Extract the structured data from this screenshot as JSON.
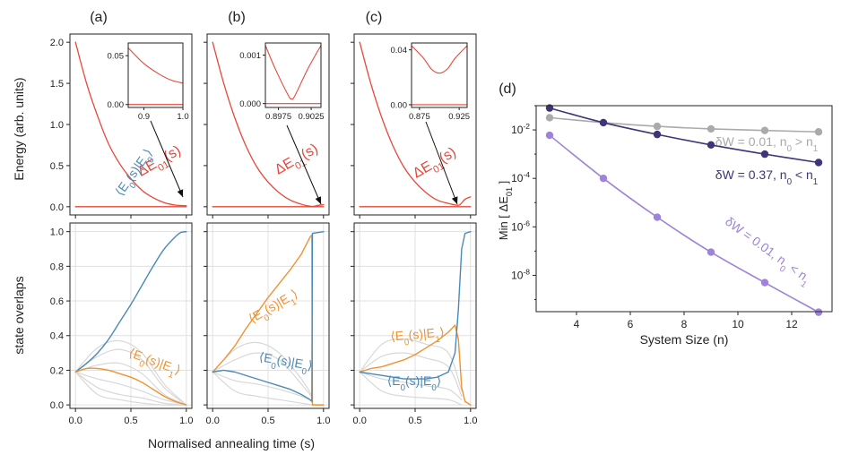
{
  "figure": {
    "panel_labels": [
      "(a)",
      "(b)",
      "(c)",
      "(d)"
    ],
    "shared_xlabel": "Normalised annealing time (s)",
    "top_ylabel": "Energy (arb. units)",
    "bottom_ylabel": "state overlaps"
  },
  "chart_data": [
    {
      "id": "a-energy",
      "type": "line",
      "xlabel": "",
      "ylabel": "Energy (arb. units)",
      "xlim": [
        0,
        1
      ],
      "ylim": [
        0,
        2.0
      ],
      "yticks": [
        "0.0",
        "0.5",
        "1.0",
        "1.5",
        "2.0"
      ],
      "series": [
        {
          "name": "ΔE01(s)",
          "x": [
            0,
            0.1,
            0.2,
            0.3,
            0.4,
            0.5,
            0.6,
            0.7,
            0.8,
            0.9,
            1.0
          ],
          "y": [
            2.0,
            1.5,
            1.1,
            0.76,
            0.52,
            0.34,
            0.2,
            0.11,
            0.05,
            0.02,
            0.012
          ]
        },
        {
          "name": "",
          "x": [
            0,
            1
          ],
          "y": [
            0,
            0
          ]
        }
      ],
      "annotation": "ΔE01(s)",
      "inset": {
        "xlim": [
          0.86,
          1.0
        ],
        "ylim": [
          -0.003,
          0.063
        ],
        "xticks": [
          "0.9",
          "1.0"
        ],
        "yticks": [
          "0.00",
          "0.05"
        ],
        "series": [
          {
            "x": [
              0.86,
              0.9,
              0.94,
              0.97,
              1.0
            ],
            "y": [
              0.058,
              0.042,
              0.031,
              0.025,
              0.022
            ]
          },
          {
            "x": [
              0.86,
              1.0
            ],
            "y": [
              0,
              0
            ]
          }
        ]
      }
    },
    {
      "id": "b-energy",
      "type": "line",
      "xlim": [
        0,
        1
      ],
      "ylim": [
        0,
        2.0
      ],
      "yticks": [
        "0.0",
        "0.5",
        "1.0",
        "1.5",
        "2.0"
      ],
      "series": [
        {
          "name": "ΔE01(s)",
          "x": [
            0,
            0.1,
            0.2,
            0.3,
            0.4,
            0.5,
            0.6,
            0.7,
            0.8,
            0.85,
            0.9,
            0.95,
            1.0
          ],
          "y": [
            2.0,
            1.5,
            1.08,
            0.74,
            0.48,
            0.3,
            0.17,
            0.08,
            0.03,
            0.012,
            0.003,
            0.015,
            0.025
          ]
        },
        {
          "name": "",
          "x": [
            0,
            1
          ],
          "y": [
            0,
            0
          ]
        }
      ],
      "annotation": "ΔE01(s)",
      "inset": {
        "xlim": [
          0.8955,
          0.904
        ],
        "ylim": [
          -8e-05,
          0.00125
        ],
        "xticks": [
          "0.8975",
          "0.9025"
        ],
        "yticks": [
          "0.000",
          "0.001"
        ],
        "series": [
          {
            "x": [
              0.8955,
              0.897,
              0.899,
              0.8995,
              0.9,
              0.902,
              0.904
            ],
            "y": [
              0.0012,
              0.00072,
              0.00017,
              0.0001,
              0.00016,
              0.00072,
              0.0012
            ]
          },
          {
            "x": [
              0.8955,
              0.904
            ],
            "y": [
              0,
              0
            ]
          }
        ]
      }
    },
    {
      "id": "c-energy",
      "type": "line",
      "xlim": [
        0,
        1
      ],
      "ylim": [
        0,
        2.0
      ],
      "yticks": [
        "0.0",
        "0.5",
        "1.0",
        "1.5",
        "2.0"
      ],
      "series": [
        {
          "name": "ΔE01(s)",
          "x": [
            0,
            0.1,
            0.2,
            0.3,
            0.4,
            0.5,
            0.6,
            0.7,
            0.8,
            0.85,
            0.9,
            0.95,
            1.0
          ],
          "y": [
            2.0,
            1.5,
            1.08,
            0.74,
            0.48,
            0.3,
            0.17,
            0.08,
            0.04,
            0.025,
            0.022,
            0.09,
            0.12
          ]
        },
        {
          "name": "",
          "x": [
            0,
            1
          ],
          "y": [
            0,
            0
          ]
        }
      ],
      "annotation": "ΔE01(s)",
      "inset": {
        "xlim": [
          0.865,
          0.935
        ],
        "ylim": [
          -0.002,
          0.045
        ],
        "xticks": [
          "0.875",
          "0.925"
        ],
        "yticks": [
          "0.00",
          "0.04"
        ],
        "series": [
          {
            "x": [
              0.865,
              0.88,
              0.89,
              0.9,
              0.91,
              0.92,
              0.935
            ],
            "y": [
              0.043,
              0.034,
              0.026,
              0.023,
              0.026,
              0.034,
              0.043
            ]
          },
          {
            "x": [
              0.865,
              0.935
            ],
            "y": [
              0,
              0
            ]
          }
        ]
      }
    },
    {
      "id": "a-overlap",
      "type": "line",
      "xlim": [
        0,
        1
      ],
      "ylim": [
        0,
        1.05
      ],
      "yticks": [
        "0.0",
        "0.2",
        "0.4",
        "0.6",
        "0.8",
        "1.0"
      ],
      "xticks": [
        "0.0",
        "0.5",
        "1.0"
      ],
      "series": [
        {
          "name": "⟨E0(s)|E0⟩",
          "x": [
            0,
            0.1,
            0.2,
            0.3,
            0.4,
            0.5,
            0.6,
            0.7,
            0.8,
            0.9,
            0.95,
            1.0
          ],
          "y": [
            0.19,
            0.24,
            0.3,
            0.38,
            0.48,
            0.58,
            0.69,
            0.8,
            0.9,
            0.97,
            0.995,
            1.0
          ]
        },
        {
          "name": "⟨E0(s)|E1⟩",
          "x": [
            0,
            0.1,
            0.2,
            0.3,
            0.4,
            0.5,
            0.6,
            0.7,
            0.8,
            0.9,
            1.0
          ],
          "y": [
            0.19,
            0.21,
            0.21,
            0.2,
            0.18,
            0.16,
            0.13,
            0.09,
            0.05,
            0.02,
            0.0
          ]
        }
      ],
      "background_series": [
        {
          "x": [
            0,
            0.2,
            0.4,
            0.6,
            0.8,
            1.0
          ],
          "y": [
            0.19,
            0.33,
            0.37,
            0.3,
            0.12,
            0
          ]
        },
        {
          "x": [
            0,
            0.2,
            0.4,
            0.6,
            0.8,
            1.0
          ],
          "y": [
            0.19,
            0.28,
            0.32,
            0.26,
            0.1,
            0
          ]
        },
        {
          "x": [
            0,
            0.2,
            0.4,
            0.6,
            0.8,
            1.0
          ],
          "y": [
            0.19,
            0.23,
            0.24,
            0.18,
            0.06,
            0
          ]
        },
        {
          "x": [
            0,
            0.2,
            0.4,
            0.6,
            0.8,
            1.0
          ],
          "y": [
            0.19,
            0.15,
            0.12,
            0.08,
            0.03,
            0
          ]
        },
        {
          "x": [
            0,
            0.2,
            0.4,
            0.6,
            0.8,
            1.0
          ],
          "y": [
            0.19,
            0.1,
            0.06,
            0.04,
            0.01,
            0
          ]
        },
        {
          "x": [
            0,
            0.2,
            0.4,
            0.6,
            0.8,
            1.0
          ],
          "y": [
            0.19,
            0.06,
            0.03,
            0.01,
            0,
            0
          ]
        }
      ]
    },
    {
      "id": "b-overlap",
      "type": "line",
      "xlim": [
        0,
        1
      ],
      "ylim": [
        0,
        1.05
      ],
      "yticks": [
        "0.0",
        "0.2",
        "0.4",
        "0.6",
        "0.8",
        "1.0"
      ],
      "xticks": [
        "0.0",
        "0.5",
        "1.0"
      ],
      "series": [
        {
          "name": "⟨E0(s)|E1⟩",
          "x": [
            0,
            0.1,
            0.2,
            0.3,
            0.4,
            0.5,
            0.6,
            0.7,
            0.8,
            0.88,
            0.895,
            0.9,
            1.0
          ],
          "y": [
            0.19,
            0.26,
            0.34,
            0.44,
            0.53,
            0.62,
            0.7,
            0.78,
            0.87,
            0.97,
            0.98,
            0.0,
            0.0
          ]
        },
        {
          "name": "⟨E0(s)|E0⟩",
          "x": [
            0,
            0.1,
            0.2,
            0.3,
            0.4,
            0.5,
            0.6,
            0.7,
            0.8,
            0.88,
            0.895,
            0.9,
            1.0
          ],
          "y": [
            0.19,
            0.2,
            0.19,
            0.17,
            0.15,
            0.13,
            0.11,
            0.09,
            0.06,
            0.03,
            0.02,
            0.99,
            1.0
          ]
        }
      ],
      "background_series": [
        {
          "x": [
            0,
            0.2,
            0.4,
            0.6,
            0.8,
            0.9
          ],
          "y": [
            0.19,
            0.32,
            0.36,
            0.3,
            0.15,
            0.05
          ]
        },
        {
          "x": [
            0,
            0.2,
            0.4,
            0.6,
            0.8,
            0.9
          ],
          "y": [
            0.19,
            0.26,
            0.3,
            0.26,
            0.12,
            0.04
          ]
        },
        {
          "x": [
            0,
            0.2,
            0.4,
            0.6,
            0.8,
            0.9
          ],
          "y": [
            0.19,
            0.14,
            0.12,
            0.09,
            0.05,
            0.02
          ]
        },
        {
          "x": [
            0,
            0.2,
            0.4,
            0.6,
            0.8,
            0.9
          ],
          "y": [
            0.19,
            0.08,
            0.05,
            0.03,
            0.01,
            0
          ]
        }
      ]
    },
    {
      "id": "c-overlap",
      "type": "line",
      "xlim": [
        0,
        1
      ],
      "ylim": [
        0,
        1.05
      ],
      "yticks": [
        "0.0",
        "0.2",
        "0.4",
        "0.6",
        "0.8",
        "1.0"
      ],
      "xticks": [
        "0.0",
        "0.5",
        "1.0"
      ],
      "series": [
        {
          "name": "⟨E0(s)|E1⟩",
          "x": [
            0,
            0.1,
            0.2,
            0.3,
            0.4,
            0.5,
            0.6,
            0.7,
            0.8,
            0.86,
            0.89,
            0.92,
            0.95,
            1.0
          ],
          "y": [
            0.19,
            0.21,
            0.22,
            0.24,
            0.26,
            0.29,
            0.33,
            0.37,
            0.42,
            0.46,
            0.38,
            0.1,
            0.02,
            0.0
          ]
        },
        {
          "name": "⟨E0(s)|E0⟩",
          "x": [
            0,
            0.1,
            0.2,
            0.3,
            0.4,
            0.5,
            0.6,
            0.7,
            0.8,
            0.86,
            0.89,
            0.92,
            0.95,
            1.0
          ],
          "y": [
            0.19,
            0.18,
            0.17,
            0.16,
            0.15,
            0.15,
            0.15,
            0.16,
            0.19,
            0.3,
            0.55,
            0.9,
            0.99,
            1.0
          ]
        }
      ],
      "background_series": [
        {
          "x": [
            0,
            0.2,
            0.4,
            0.6,
            0.8,
            0.92
          ],
          "y": [
            0.19,
            0.35,
            0.38,
            0.35,
            0.3,
            0.08
          ]
        },
        {
          "x": [
            0,
            0.2,
            0.4,
            0.6,
            0.8,
            0.92
          ],
          "y": [
            0.19,
            0.28,
            0.3,
            0.27,
            0.22,
            0.05
          ]
        },
        {
          "x": [
            0,
            0.2,
            0.4,
            0.6,
            0.8,
            0.92
          ],
          "y": [
            0.19,
            0.15,
            0.13,
            0.11,
            0.09,
            0.03
          ]
        },
        {
          "x": [
            0,
            0.2,
            0.4,
            0.6,
            0.8,
            0.92
          ],
          "y": [
            0.19,
            0.08,
            0.05,
            0.04,
            0.03,
            0
          ]
        }
      ]
    },
    {
      "id": "d",
      "type": "line",
      "xlabel": "System Size (n)",
      "ylabel": "Min [ ΔE01 ]",
      "xlim": [
        2.5,
        13.5
      ],
      "ylim_log10": [
        -9.5,
        -1
      ],
      "yscale": "log",
      "xticks": [
        "4",
        "6",
        "8",
        "10",
        "12"
      ],
      "yticks": [
        "10-8",
        "10-6",
        "10-4",
        "10-2"
      ],
      "series": [
        {
          "name": "δW = 0.01, n0 > n1",
          "x": [
            3,
            5,
            7,
            9,
            11,
            13
          ],
          "y": [
            0.032,
            0.02,
            0.014,
            0.011,
            0.0095,
            0.0083
          ]
        },
        {
          "name": "δW = 0.37, n0 < n1",
          "x": [
            3,
            5,
            7,
            9,
            11,
            13
          ],
          "y": [
            0.08,
            0.02,
            0.0065,
            0.0024,
            0.001,
            0.00045
          ]
        },
        {
          "name": "δW = 0.01, n0 < n1",
          "x": [
            3,
            5,
            7,
            9,
            11,
            13
          ],
          "y": [
            0.006,
            0.0001,
            2.5e-06,
            9e-08,
            5e-09,
            3e-10
          ]
        }
      ]
    }
  ],
  "colors": {
    "energy": "#e8473a",
    "blue": "#4a8ab8",
    "orange": "#f09232",
    "gray_bg": "#d8d8d8",
    "grid": "#e0e0e0",
    "d_gray": "#aaaaaa",
    "d_dark": "#3d3578",
    "d_purple": "#9d83d9"
  }
}
